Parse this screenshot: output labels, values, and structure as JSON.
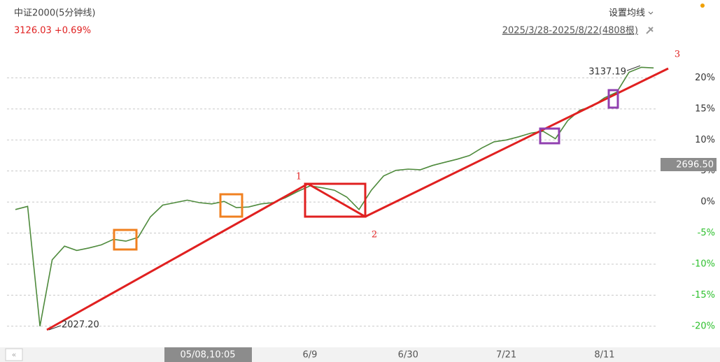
{
  "header": {
    "title": "中证2000(5分钟线)",
    "quote": "3126.03 +0.69%",
    "ma_setting": "设置均线",
    "range": "2025/3/28-2025/8/22(4808根)"
  },
  "crosshair": {
    "x_label": "05/08,10:05",
    "y_label": "2696.50"
  },
  "annotations": {
    "high": "3137.19",
    "low": "2027.20",
    "point1": "1",
    "point2": "2",
    "point3": "3"
  },
  "chart_data": {
    "type": "line",
    "categories": [
      null,
      null,
      null,
      null,
      null,
      null,
      null,
      null,
      null,
      null,
      null,
      null,
      null,
      null,
      null,
      null,
      null,
      null,
      null,
      null,
      null,
      null,
      null,
      null,
      "6/9",
      null,
      null,
      null,
      null,
      null,
      null,
      null,
      "6/30",
      null,
      null,
      null,
      null,
      null,
      null,
      null,
      "7/21",
      null,
      null,
      null,
      null,
      null,
      null,
      null,
      "8/11",
      null,
      null,
      null,
      null
    ],
    "series": [
      {
        "color": "#4e8a3c",
        "values": [
          -1.2,
          -0.7,
          -20,
          -9.3,
          -7.1,
          -7.8,
          -7.4,
          -6.9,
          -6.0,
          -6.3,
          -5.7,
          -2.4,
          -0.5,
          -0.1,
          0.3,
          -0.1,
          -0.3,
          0.1,
          -0.9,
          -0.8,
          -0.3,
          -0.1,
          0.7,
          1.7,
          2.6,
          2.3,
          1.9,
          0.8,
          -1.2,
          1.9,
          4.2,
          5.1,
          5.3,
          5.2,
          5.9,
          6.4,
          6.9,
          7.5,
          8.7,
          9.7,
          10.0,
          10.5,
          11.1,
          11.4,
          10.2,
          13.1,
          14.8,
          15.4,
          16.8,
          17.7,
          20.9,
          21.7,
          21.6
        ]
      }
    ],
    "ylim": [
      -22.5,
      25
    ],
    "yticks": [
      {
        "value": -20,
        "label": "-20%"
      },
      {
        "value": -15,
        "label": "-15%"
      },
      {
        "value": -10,
        "label": "-10%"
      },
      {
        "value": -5,
        "label": "-5%"
      },
      {
        "value": 0,
        "label": "0%"
      },
      {
        "value": 5,
        "label": "5%"
      },
      {
        "value": 10,
        "label": "10%"
      },
      {
        "value": 15,
        "label": "15%"
      },
      {
        "value": 20,
        "label": "20%"
      }
    ],
    "grid": true
  }
}
